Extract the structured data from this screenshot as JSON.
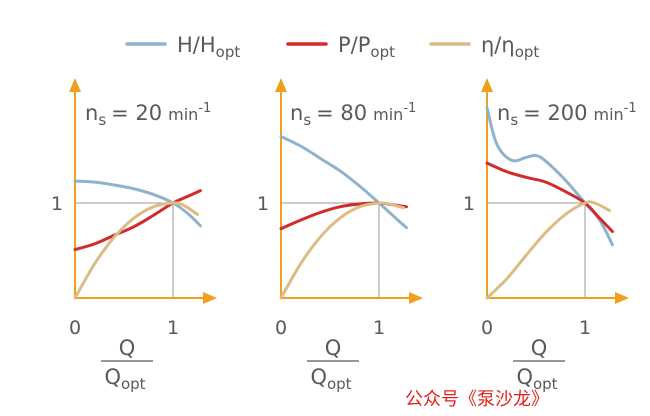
{
  "colors": {
    "head": "#8fb3cc",
    "power": "#d12b2b",
    "efficiency": "#dcbc84",
    "axis": "#f0a01e",
    "guide": "#9a9a9a",
    "text": "#58595b",
    "watermark": "#e2231a"
  },
  "legend": {
    "head": {
      "base": "H/H",
      "sub": "opt"
    },
    "power": {
      "base": "P/P",
      "sub": "opt"
    },
    "efficiency": {
      "base": "η/η",
      "sub": "opt"
    }
  },
  "axis_text": {
    "y_one": "1",
    "x_zero": "0",
    "x_one": "1",
    "frac_num": "Q",
    "frac_den_base": "Q",
    "frac_den_sub": "opt"
  },
  "watermark": "公众号《泵沙龙》",
  "chart_data": [
    {
      "type": "line",
      "title": "ns = 20 min-1",
      "title_parts": {
        "n": "n",
        "n_sub": "s",
        "eq": "= 20",
        "unit": "min",
        "unit_sup": "-1"
      },
      "xlabel": "Q/Qopt",
      "xlim": [
        0,
        1.33
      ],
      "ylim": [
        0,
        2.05
      ],
      "xticks": [
        0,
        1
      ],
      "yticks": [
        1
      ],
      "series": [
        {
          "name": "H/Hopt",
          "key": "head",
          "x": [
            0,
            0.2,
            0.4,
            0.6,
            0.8,
            1.0,
            1.15,
            1.28
          ],
          "y": [
            1.23,
            1.22,
            1.19,
            1.15,
            1.09,
            1.0,
            0.89,
            0.76
          ]
        },
        {
          "name": "P/Popt",
          "key": "power",
          "x": [
            0,
            0.2,
            0.4,
            0.6,
            0.8,
            1.0,
            1.15,
            1.28
          ],
          "y": [
            0.51,
            0.57,
            0.66,
            0.75,
            0.87,
            1.0,
            1.07,
            1.13
          ]
        },
        {
          "name": "η/ηopt",
          "key": "efficiency",
          "x": [
            0,
            0.2,
            0.4,
            0.6,
            0.8,
            1.0,
            1.1,
            1.25
          ],
          "y": [
            0,
            0.36,
            0.64,
            0.84,
            0.96,
            1.0,
            0.98,
            0.88
          ]
        }
      ]
    },
    {
      "type": "line",
      "title": "ns = 80 min-1",
      "title_parts": {
        "n": "n",
        "n_sub": "s",
        "eq": "= 80",
        "unit": "min",
        "unit_sup": "-1"
      },
      "xlabel": "Q/Qopt",
      "xlim": [
        0,
        1.33
      ],
      "ylim": [
        0,
        2.05
      ],
      "xticks": [
        0,
        1
      ],
      "yticks": [
        1
      ],
      "series": [
        {
          "name": "H/Hopt",
          "key": "head",
          "x": [
            0,
            0.2,
            0.4,
            0.6,
            0.8,
            1.0,
            1.15,
            1.28
          ],
          "y": [
            1.7,
            1.6,
            1.47,
            1.34,
            1.18,
            1.0,
            0.86,
            0.74
          ]
        },
        {
          "name": "P/Popt",
          "key": "power",
          "x": [
            0,
            0.2,
            0.4,
            0.6,
            0.8,
            1.0,
            1.15,
            1.28
          ],
          "y": [
            0.73,
            0.82,
            0.9,
            0.96,
            0.99,
            1.0,
            0.98,
            0.96
          ]
        },
        {
          "name": "η/ηopt",
          "key": "efficiency",
          "x": [
            0,
            0.2,
            0.4,
            0.6,
            0.8,
            1.0,
            1.1,
            1.25
          ],
          "y": [
            0,
            0.36,
            0.64,
            0.84,
            0.96,
            1.0,
            0.99,
            0.95
          ]
        }
      ]
    },
    {
      "type": "line",
      "title": "ns = 200 min-1",
      "title_parts": {
        "n": "n",
        "n_sub": "s",
        "eq": "= 200",
        "unit": "min",
        "unit_sup": "-1"
      },
      "xlabel": "Q/Qopt",
      "xlim": [
        0,
        1.33
      ],
      "ylim": [
        0,
        2.05
      ],
      "xticks": [
        0,
        1
      ],
      "yticks": [
        1
      ],
      "series": [
        {
          "name": "H/Hopt",
          "key": "head",
          "x": [
            0,
            0.1,
            0.25,
            0.4,
            0.5,
            0.6,
            0.8,
            1.0,
            1.15,
            1.28
          ],
          "y": [
            2.0,
            1.62,
            1.45,
            1.48,
            1.5,
            1.44,
            1.24,
            1.0,
            0.82,
            0.56
          ]
        },
        {
          "name": "P/Popt",
          "key": "power",
          "x": [
            0,
            0.2,
            0.4,
            0.6,
            0.8,
            1.0,
            1.15,
            1.28
          ],
          "y": [
            1.42,
            1.33,
            1.27,
            1.22,
            1.12,
            1.0,
            0.84,
            0.7
          ]
        },
        {
          "name": "η/ηopt",
          "key": "efficiency",
          "x": [
            0,
            0.2,
            0.4,
            0.6,
            0.8,
            1.0,
            1.1,
            1.25
          ],
          "y": [
            0,
            0.2,
            0.45,
            0.69,
            0.88,
            1.0,
            1.0,
            0.92
          ]
        }
      ]
    }
  ]
}
